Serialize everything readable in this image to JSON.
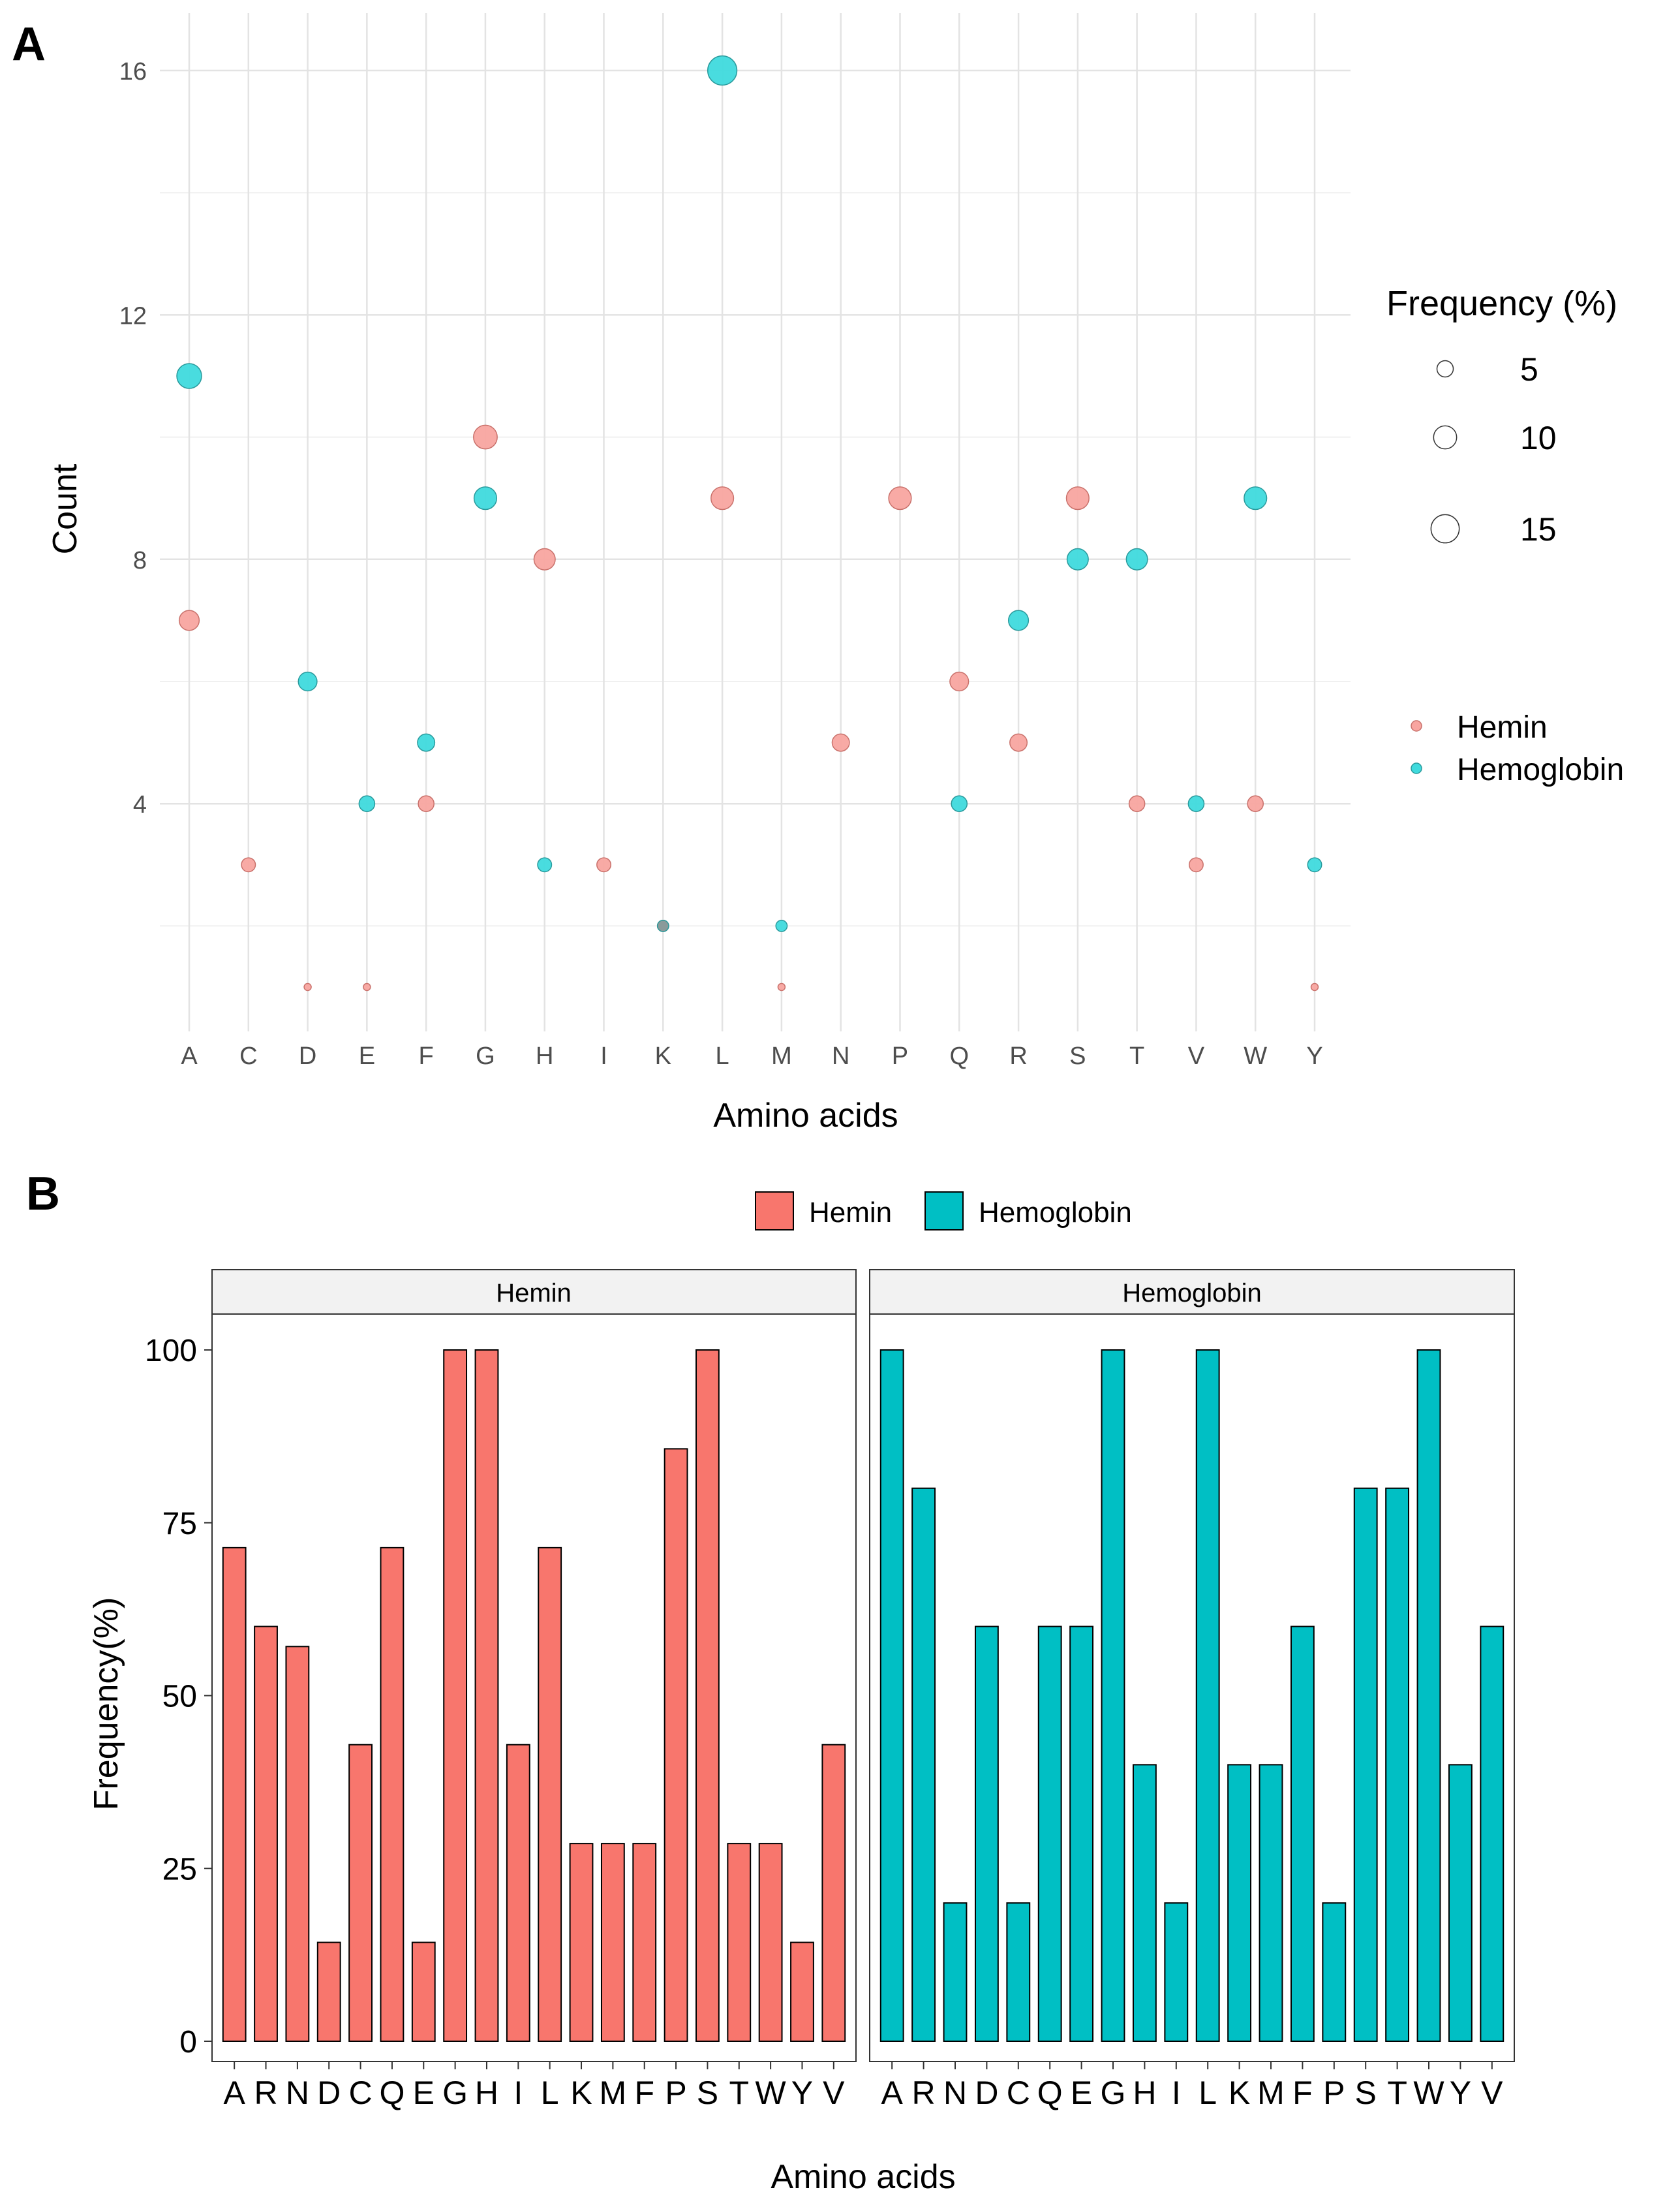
{
  "panels": {
    "a": "A",
    "b": "B"
  },
  "chart_data": [
    {
      "type": "scatter",
      "panel": "A",
      "xlabel": "Amino acids",
      "ylabel": "Count",
      "categories": [
        "A",
        "C",
        "D",
        "E",
        "F",
        "G",
        "H",
        "I",
        "K",
        "L",
        "M",
        "N",
        "P",
        "Q",
        "R",
        "S",
        "T",
        "V",
        "W",
        "Y"
      ],
      "yticks": [
        4,
        8,
        12,
        16
      ],
      "ylim": [
        0.5,
        16.5
      ],
      "size_legend": {
        "title": "Frequency (%)",
        "values": [
          5,
          10,
          15
        ]
      },
      "color_legend": {
        "entries": [
          "Hemin",
          "Hemoglobin"
        ]
      },
      "colors": {
        "Hemin": "#f8a5a0",
        "Hemoglobin": "#3fdadd",
        "overlap": "#8a9a9a"
      },
      "series": [
        {
          "name": "Hemin",
          "points": [
            {
              "x": "A",
              "y": 7,
              "size": 9.4
            },
            {
              "x": "C",
              "y": 3,
              "size": 4.6
            },
            {
              "x": "D",
              "y": 1,
              "size": 1.2
            },
            {
              "x": "E",
              "y": 1,
              "size": 1.2
            },
            {
              "x": "F",
              "y": 4,
              "size": 5.8
            },
            {
              "x": "G",
              "y": 10,
              "size": 13.2
            },
            {
              "x": "H",
              "y": 8,
              "size": 10.6
            },
            {
              "x": "I",
              "y": 3,
              "size": 4.6
            },
            {
              "x": "K",
              "y": 2,
              "size": 3
            },
            {
              "x": "L",
              "y": 9,
              "size": 12
            },
            {
              "x": "M",
              "y": 1,
              "size": 1.2
            },
            {
              "x": "N",
              "y": 5,
              "size": 7
            },
            {
              "x": "P",
              "y": 9,
              "size": 12
            },
            {
              "x": "Q",
              "y": 6,
              "size": 8.2
            },
            {
              "x": "R",
              "y": 5,
              "size": 7
            },
            {
              "x": "S",
              "y": 9,
              "size": 12
            },
            {
              "x": "T",
              "y": 4,
              "size": 5.8
            },
            {
              "x": "V",
              "y": 3,
              "size": 4.6
            },
            {
              "x": "W",
              "y": 4,
              "size": 5.8
            },
            {
              "x": "Y",
              "y": 1,
              "size": 1.2
            }
          ]
        },
        {
          "name": "Hemoglobin",
          "points": [
            {
              "x": "A",
              "y": 11,
              "size": 14.4
            },
            {
              "x": "D",
              "y": 6,
              "size": 8.2
            },
            {
              "x": "E",
              "y": 4,
              "size": 5.8
            },
            {
              "x": "F",
              "y": 5,
              "size": 7
            },
            {
              "x": "G",
              "y": 9,
              "size": 12
            },
            {
              "x": "H",
              "y": 3,
              "size": 4.6
            },
            {
              "x": "K",
              "y": 2,
              "size": 3
            },
            {
              "x": "L",
              "y": 16,
              "size": 20
            },
            {
              "x": "M",
              "y": 2,
              "size": 3
            },
            {
              "x": "Q",
              "y": 4,
              "size": 5.8
            },
            {
              "x": "R",
              "y": 7,
              "size": 9.4
            },
            {
              "x": "S",
              "y": 8,
              "size": 10.6
            },
            {
              "x": "T",
              "y": 8,
              "size": 10.6
            },
            {
              "x": "V",
              "y": 4,
              "size": 5.8
            },
            {
              "x": "W",
              "y": 9,
              "size": 12
            },
            {
              "x": "Y",
              "y": 3,
              "size": 4.6
            }
          ]
        }
      ]
    },
    {
      "type": "bar",
      "panel": "B",
      "xlabel": "Amino acids",
      "ylabel": "Frequency(%)",
      "yticks": [
        0,
        25,
        50,
        75,
        100
      ],
      "ylim": [
        0,
        110
      ],
      "legend": {
        "entries": [
          "Hemin",
          "Hemoglobin"
        ]
      },
      "categories": [
        "A",
        "R",
        "N",
        "D",
        "C",
        "Q",
        "E",
        "G",
        "H",
        "I",
        "L",
        "K",
        "M",
        "F",
        "P",
        "S",
        "T",
        "W",
        "Y",
        "V"
      ],
      "series": [
        {
          "name": "Hemin",
          "facet_label": "Hemin",
          "color": "#f8766d",
          "values": [
            71.4,
            60,
            57.1,
            14.3,
            42.9,
            71.4,
            14.3,
            100,
            100,
            42.9,
            71.4,
            28.6,
            28.6,
            28.6,
            85.7,
            100,
            28.6,
            28.6,
            14.3,
            42.9
          ]
        },
        {
          "name": "Hemoglobin",
          "facet_label": "Hemoglobin",
          "color": "#00bfc4",
          "values": [
            100,
            80,
            20,
            60,
            20,
            60,
            60,
            100,
            40,
            20,
            100,
            40,
            40,
            60,
            20,
            80,
            80,
            100,
            40,
            60
          ]
        }
      ]
    }
  ]
}
